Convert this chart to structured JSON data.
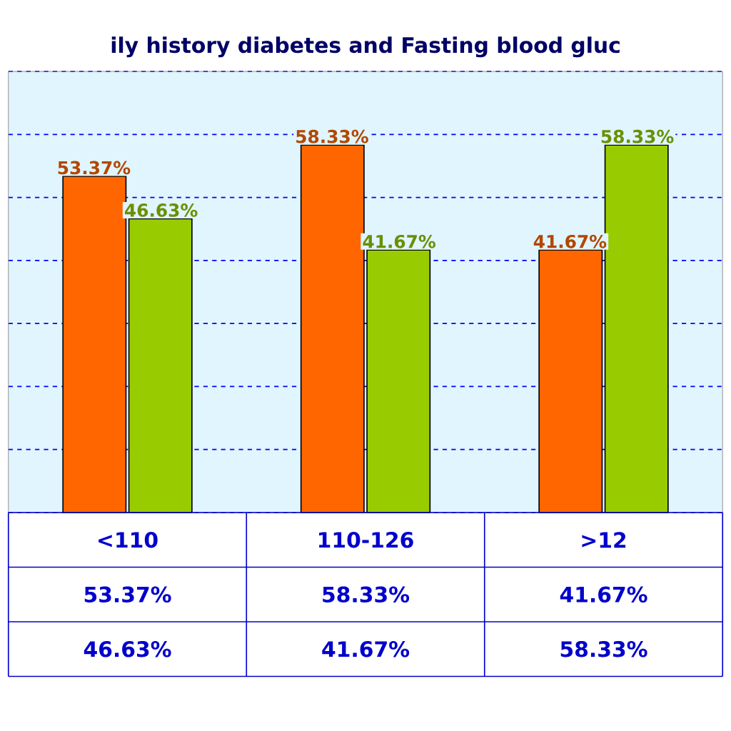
{
  "chart_data": {
    "type": "bar",
    "title": "ily history diabetes and Fasting blood gluc",
    "categories": [
      "<110",
      "110-126",
      ">12"
    ],
    "series": [
      {
        "color": "#ff6600",
        "values": [
          53.37,
          58.33,
          41.67
        ],
        "value_labels": [
          "53.37%",
          "58.33%",
          "41.67%"
        ]
      },
      {
        "color": "#99cc00",
        "values": [
          46.63,
          41.67,
          58.33
        ],
        "value_labels": [
          "46.63%",
          "41.67%",
          "58.33%"
        ]
      }
    ],
    "ylim": [
      0,
      70
    ],
    "yticks": [
      {
        "value": 0,
        "label": null
      },
      {
        "value": 10,
        "label": null
      },
      {
        "value": 20,
        "label": null
      },
      {
        "value": 30,
        "label": null
      },
      {
        "value": 40,
        "label": null
      },
      {
        "value": 50,
        "label": null
      },
      {
        "value": 60,
        "label": null
      },
      {
        "value": 70,
        "label": null
      }
    ],
    "grid": "y"
  }
}
